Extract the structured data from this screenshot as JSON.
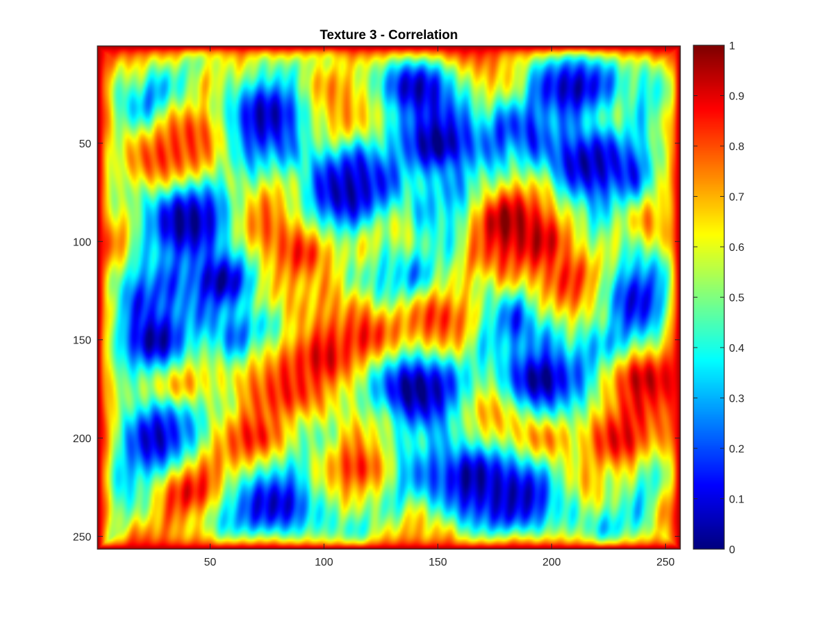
{
  "chart_data": {
    "type": "heatmap",
    "title": "Texture 3 - Correlation",
    "xlabel": "",
    "ylabel": "",
    "x_range": [
      1,
      256
    ],
    "y_range": [
      1,
      256
    ],
    "y_direction": "reversed",
    "x_ticks": [
      50,
      100,
      150,
      200,
      250
    ],
    "x_tick_labels": [
      "50",
      "100",
      "150",
      "200",
      "250"
    ],
    "y_ticks": [
      50,
      100,
      150,
      200,
      250
    ],
    "y_tick_labels": [
      "50",
      "100",
      "150",
      "200",
      "250"
    ],
    "colormap": "jet",
    "value_range": [
      0,
      1
    ],
    "colorbar": {
      "position": "right",
      "ticks": [
        0,
        0.1,
        0.2,
        0.3,
        0.4,
        0.5,
        0.6,
        0.7,
        0.8,
        0.9,
        1
      ],
      "tick_labels": [
        "0",
        "0.1",
        "0.2",
        "0.3",
        "0.4",
        "0.5",
        "0.6",
        "0.7",
        "0.8",
        "0.9",
        "1"
      ]
    },
    "border_value": 0.95,
    "features": [
      {
        "x": 180,
        "y": 90,
        "value": 1.0
      },
      {
        "x": 195,
        "y": 100,
        "value": 0.95
      },
      {
        "x": 210,
        "y": 120,
        "value": 0.88
      },
      {
        "x": 100,
        "y": 160,
        "value": 0.95
      },
      {
        "x": 120,
        "y": 150,
        "value": 0.9
      },
      {
        "x": 85,
        "y": 175,
        "value": 0.85
      },
      {
        "x": 40,
        "y": 225,
        "value": 0.95
      },
      {
        "x": 70,
        "y": 200,
        "value": 0.88
      },
      {
        "x": 90,
        "y": 105,
        "value": 0.9
      },
      {
        "x": 70,
        "y": 95,
        "value": 0.85
      },
      {
        "x": 100,
        "y": 25,
        "value": 0.8
      },
      {
        "x": 125,
        "y": 30,
        "value": 0.8
      },
      {
        "x": 45,
        "y": 45,
        "value": 0.85
      },
      {
        "x": 30,
        "y": 60,
        "value": 0.85
      },
      {
        "x": 175,
        "y": 185,
        "value": 0.85
      },
      {
        "x": 195,
        "y": 200,
        "value": 0.85
      },
      {
        "x": 240,
        "y": 170,
        "value": 0.95
      },
      {
        "x": 230,
        "y": 200,
        "value": 0.9
      },
      {
        "x": 150,
        "y": 140,
        "value": 0.85
      },
      {
        "x": 115,
        "y": 215,
        "value": 0.85
      },
      {
        "x": 70,
        "y": 120,
        "value": 0.9
      },
      {
        "x": 160,
        "y": 5,
        "value": 0.8
      },
      {
        "x": 35,
        "y": 170,
        "value": 0.9
      },
      {
        "x": 40,
        "y": 90,
        "value": 0.02
      },
      {
        "x": 55,
        "y": 120,
        "value": 0.02
      },
      {
        "x": 25,
        "y": 150,
        "value": 0.0
      },
      {
        "x": 25,
        "y": 200,
        "value": 0.05
      },
      {
        "x": 140,
        "y": 20,
        "value": 0.02
      },
      {
        "x": 140,
        "y": 175,
        "value": 0.0
      },
      {
        "x": 165,
        "y": 220,
        "value": 0.02
      },
      {
        "x": 195,
        "y": 170,
        "value": 0.0
      },
      {
        "x": 210,
        "y": 20,
        "value": 0.02
      },
      {
        "x": 215,
        "y": 60,
        "value": 0.05
      },
      {
        "x": 75,
        "y": 35,
        "value": 0.05
      },
      {
        "x": 110,
        "y": 75,
        "value": 0.05
      },
      {
        "x": 185,
        "y": 230,
        "value": 0.05
      },
      {
        "x": 80,
        "y": 235,
        "value": 0.05
      },
      {
        "x": 150,
        "y": 50,
        "value": 0.0
      },
      {
        "x": 240,
        "y": 130,
        "value": 0.05
      }
    ]
  }
}
